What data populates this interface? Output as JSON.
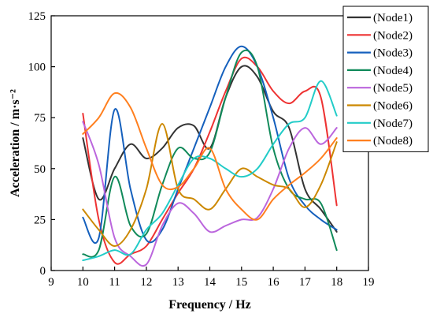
{
  "chart_data": {
    "type": "line",
    "title": "",
    "xlabel": "Frequency / Hz",
    "ylabel": "Acceleration / m·s⁻²",
    "xlim": [
      9,
      19
    ],
    "ylim": [
      0,
      125
    ],
    "xticks": [
      9,
      10,
      11,
      12,
      13,
      14,
      15,
      16,
      17,
      18,
      19
    ],
    "yticks": [
      0,
      25,
      50,
      75,
      100,
      125
    ],
    "grid": false,
    "legend_position": "top-right",
    "x": [
      10,
      10.5,
      11,
      11.5,
      12,
      12.5,
      13,
      13.5,
      14,
      14.5,
      15,
      15.5,
      16,
      16.5,
      17,
      17.5,
      18
    ],
    "series": [
      {
        "name": "(Node1)",
        "color": "#333333",
        "values": [
          65,
          35,
          50,
          62,
          55,
          60,
          70,
          71,
          60,
          85,
          100,
          95,
          78,
          70,
          40,
          30,
          19
        ]
      },
      {
        "name": "(Node2)",
        "color": "#ee3333",
        "values": [
          77,
          25,
          4,
          8,
          12,
          25,
          38,
          50,
          68,
          88,
          104,
          100,
          88,
          82,
          88,
          85,
          32
        ]
      },
      {
        "name": "(Node3)",
        "color": "#1560bd",
        "values": [
          26,
          16,
          79,
          40,
          15,
          20,
          40,
          60,
          80,
          100,
          110,
          100,
          75,
          45,
          32,
          25,
          20
        ]
      },
      {
        "name": "(Node4)",
        "color": "#118a5a",
        "values": [
          8,
          10,
          46,
          22,
          18,
          42,
          60,
          55,
          58,
          85,
          107,
          100,
          60,
          40,
          35,
          33,
          10
        ]
      },
      {
        "name": "(Node5)",
        "color": "#bb66dd",
        "values": [
          73,
          52,
          16,
          7,
          3,
          22,
          33,
          28,
          19,
          22,
          25,
          26,
          40,
          60,
          70,
          62,
          70
        ]
      },
      {
        "name": "(Node6)",
        "color": "#cc8800",
        "values": [
          30,
          20,
          12,
          20,
          40,
          72,
          40,
          35,
          30,
          40,
          50,
          46,
          42,
          40,
          31,
          42,
          63
        ]
      },
      {
        "name": "(Node7)",
        "color": "#22ccc8",
        "values": [
          5,
          7,
          10,
          8,
          20,
          28,
          42,
          55,
          55,
          50,
          46,
          50,
          62,
          72,
          75,
          93,
          76
        ]
      },
      {
        "name": "(Node8)",
        "color": "#ff7f1e",
        "values": [
          67,
          75,
          87,
          80,
          60,
          42,
          41,
          50,
          60,
          40,
          30,
          25,
          35,
          42,
          48,
          55,
          65
        ]
      }
    ]
  }
}
